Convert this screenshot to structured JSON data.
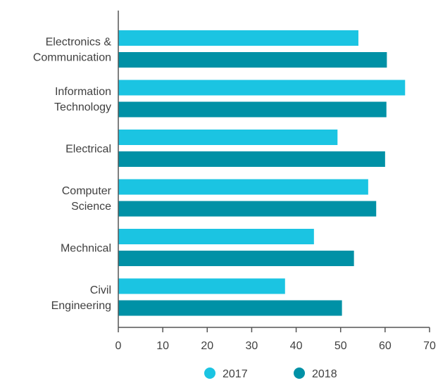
{
  "chart_data": {
    "type": "bar",
    "orientation": "horizontal",
    "categories": [
      [
        "Electronics &",
        "Communication"
      ],
      [
        "Information",
        "Technology"
      ],
      [
        "Electrical"
      ],
      [
        "Computer",
        "Science"
      ],
      [
        "Mechnical"
      ],
      [
        "Civil",
        "Engineering"
      ]
    ],
    "series": [
      {
        "name": "2017",
        "color": "#1bc4e2",
        "values": [
          54,
          64.5,
          49.3,
          56.2,
          44,
          37.5
        ]
      },
      {
        "name": "2018",
        "color": "#0091a6",
        "values": [
          60.4,
          60.3,
          60,
          58,
          53,
          50.3
        ]
      }
    ],
    "xlim": [
      0,
      70
    ],
    "xticks": [
      0,
      10,
      20,
      30,
      40,
      50,
      60,
      70
    ],
    "grid": false,
    "legend_position": "bottom",
    "axis_color": "#555555"
  }
}
